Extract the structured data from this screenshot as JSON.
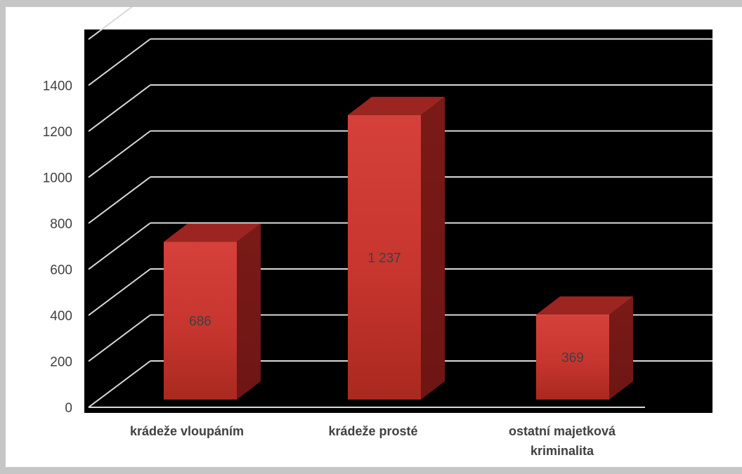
{
  "chart_data": {
    "type": "bar",
    "style": "3d-column",
    "title": "",
    "xlabel": "",
    "ylabel": "",
    "categories": [
      "krádeže vloupáním",
      "krádeže prosté",
      "ostatní majetková kriminalita"
    ],
    "category_lines": [
      [
        "krádeže vloupáním"
      ],
      [
        "krádeže prosté"
      ],
      [
        "ostatní majetková",
        "kriminalita"
      ]
    ],
    "values": [
      686,
      1237,
      369
    ],
    "value_labels": [
      "686",
      "1 237",
      "369"
    ],
    "yticks": [
      0,
      200,
      400,
      600,
      800,
      1000,
      1200,
      1400
    ],
    "ylim": [
      0,
      1600
    ],
    "grid": true,
    "legend": "none",
    "colors": {
      "plot_background": "#000000",
      "gridline": "#d9d9d9",
      "bar_front": "#c7352f",
      "bar_top": "#9c2521",
      "bar_side": "#6e1614",
      "tick_label": "#404040",
      "category_label": "#404040",
      "value_label": "#404040"
    }
  }
}
